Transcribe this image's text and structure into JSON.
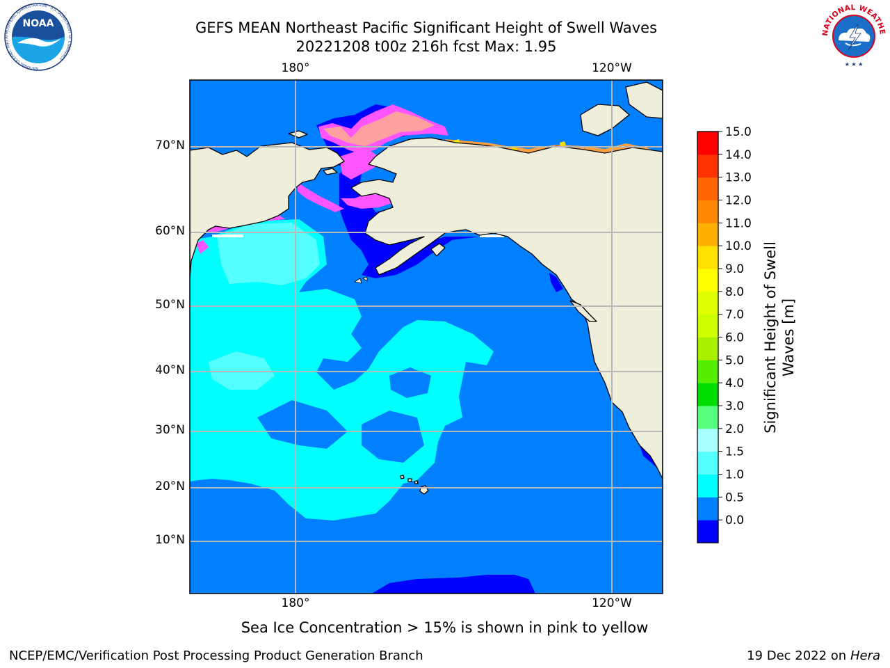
{
  "title_line1": "GEFS MEAN Northeast Pacific Significant Height of Swell Waves",
  "title_line2": "20221208 t00z 216h fcst   Max: 1.95",
  "map": {
    "top_lon_labels": [
      "180°",
      "120°W"
    ],
    "bottom_lon_labels": [
      "180°",
      "120°W"
    ],
    "lat_labels": [
      "70°N",
      "60°N",
      "50°N",
      "40°N",
      "30°N",
      "20°N",
      "10°N"
    ],
    "colors": {
      "land": "#efeedb",
      "ocean_deep": "#0000ff",
      "ocean_mid": "#0080ff",
      "ocean_light": "#00ffff",
      "ocean_lighter": "#55ffff",
      "ice_pink": "#ff55ff",
      "ice_peach": "#ffa0a0",
      "ice_orange": "#ffa040",
      "ice_yellow": "#ffe000",
      "grid": "#b8b8b8"
    }
  },
  "colorbar": {
    "label": "Significant Height of Swell Waves [m]",
    "ticks": [
      "15.0",
      "14.0",
      "13.0",
      "12.0",
      "11.0",
      "10.0",
      "9.0",
      "8.0",
      "7.0",
      "6.0",
      "5.0",
      "4.0",
      "3.0",
      "2.0",
      "1.5",
      "1.0",
      "0.5",
      "0.0"
    ],
    "colors_bottom_to_top": [
      "#0000ff",
      "#0080ff",
      "#00ffff",
      "#55ffff",
      "#aaffff",
      "#55ff80",
      "#00dd00",
      "#55ee00",
      "#aaee00",
      "#ccff00",
      "#ddff00",
      "#ffff00",
      "#ffe000",
      "#ffb000",
      "#ff8800",
      "#ff6600",
      "#ff3300",
      "#ff0000"
    ]
  },
  "note": "Sea Ice Concentration > 15% is shown in pink to yellow",
  "footer_left": "NCEP/EMC/Verification Post Processing Product Generation Branch",
  "footer_right_prefix": "19 Dec 2022 on",
  "footer_right_host": "Hera",
  "logos": {
    "noaa_text": "NOAA",
    "noaa_ring_text": "NATIONAL OCEANIC AND ATMOSPHERIC ADMINISTRATION · U.S. DEPARTMENT OF COMMERCE",
    "nws_ring_text": "NATIONAL WEATHER SERVICE"
  }
}
